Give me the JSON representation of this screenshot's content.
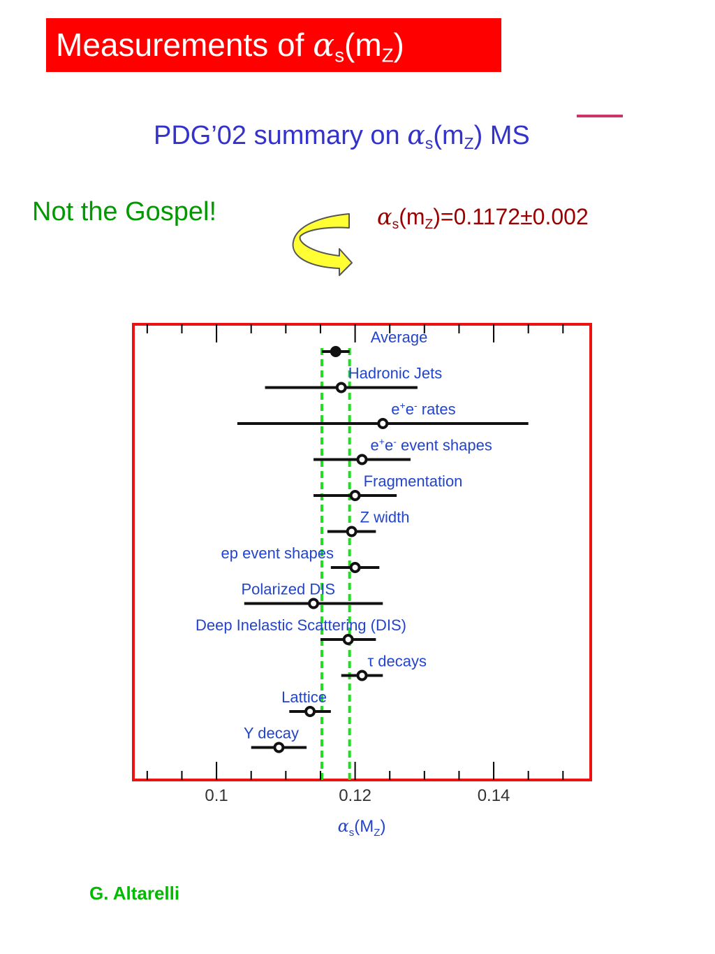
{
  "header": {
    "title": "Measurements of ",
    "title_symbol": "α",
    "title_sub_s": "s",
    "title_open": "(m",
    "title_sub_z": "Z",
    "title_close": ")"
  },
  "subtitle": {
    "prefix": "PDG’02 summary on ",
    "symbol": "α",
    "sub_s": "s",
    "open": "(m",
    "sub_z": "Z",
    "close": ") ",
    "scheme": "MS"
  },
  "note": {
    "text": "Not the Gospel!"
  },
  "result": {
    "symbol": "α",
    "sub_s": "s",
    "open": "(m",
    "sub_z": "Z",
    "value": ")=0.1172±0.002"
  },
  "author": {
    "name": "G. Altarelli"
  },
  "colors": {
    "title_bg": "#ff0000",
    "subtitle": "#3333cc",
    "note": "#009900",
    "result": "#990000",
    "author": "#00bb00",
    "frame": "#ee1111",
    "band": "#22dd22",
    "label": "#2244cc",
    "arrow_fill": "#ffff33",
    "arrow_stroke": "#555555"
  },
  "icons": {
    "arrow": "curved-arrow-icon"
  },
  "chart_data": {
    "type": "scatter",
    "xlim": [
      0.088,
      0.154
    ],
    "x_ticks": [
      0.1,
      0.12,
      0.14
    ],
    "x_tick_labels": [
      "0.1",
      "0.12",
      "0.14"
    ],
    "xlabel_symbol": "α",
    "xlabel_sub_s": "s",
    "xlabel_open": "(M",
    "xlabel_sub_z": "Z",
    "xlabel_close": ")",
    "band": [
      0.1152,
      0.1192
    ],
    "measurements": [
      {
        "label": "Average",
        "value": 0.1172,
        "low": 0.1152,
        "high": 0.1192,
        "filled": true
      },
      {
        "label": "Hadronic Jets",
        "value": 0.118,
        "low": 0.107,
        "high": 0.129,
        "filled": false
      },
      {
        "label": "e+e- rates",
        "value": 0.124,
        "low": 0.103,
        "high": 0.145,
        "filled": false
      },
      {
        "label": "e+e- event shapes",
        "value": 0.121,
        "low": 0.114,
        "high": 0.128,
        "filled": false
      },
      {
        "label": "Fragmentation",
        "value": 0.12,
        "low": 0.114,
        "high": 0.126,
        "filled": false
      },
      {
        "label": "Z width",
        "value": 0.1195,
        "low": 0.116,
        "high": 0.123,
        "filled": false
      },
      {
        "label": "ep event shapes",
        "value": 0.12,
        "low": 0.1165,
        "high": 0.1235,
        "filled": false
      },
      {
        "label": "Polarized DIS",
        "value": 0.114,
        "low": 0.104,
        "high": 0.124,
        "filled": false
      },
      {
        "label": "Deep Inelastic Scattering (DIS)",
        "value": 0.119,
        "low": 0.115,
        "high": 0.123,
        "filled": false
      },
      {
        "label": "τ decays",
        "value": 0.121,
        "low": 0.118,
        "high": 0.124,
        "filled": false
      },
      {
        "label": "Lattice",
        "value": 0.1135,
        "low": 0.1105,
        "high": 0.1165,
        "filled": false
      },
      {
        "label": "Υ decay",
        "value": 0.109,
        "low": 0.105,
        "high": 0.113,
        "filled": false
      }
    ]
  }
}
